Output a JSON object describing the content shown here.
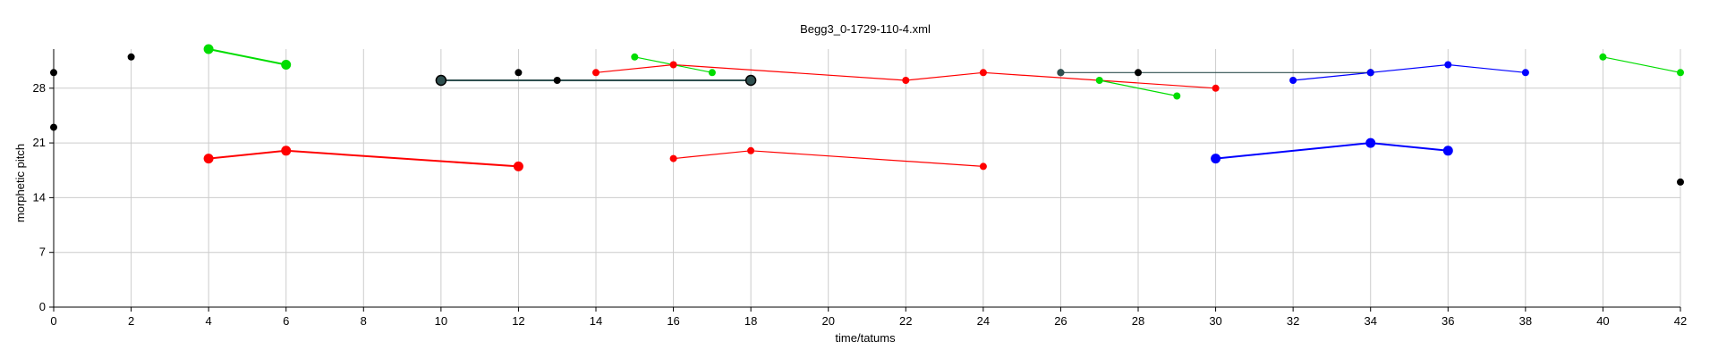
{
  "chart_data": {
    "type": "scatter",
    "title": "Begg3_0-1729-110-4.xml",
    "xlabel": "time/tatums",
    "ylabel": "morphetic pitch",
    "xlim": [
      0,
      42
    ],
    "ylim": [
      0,
      33
    ],
    "xticks": [
      0,
      2,
      4,
      6,
      8,
      10,
      12,
      14,
      16,
      18,
      20,
      22,
      24,
      26,
      28,
      30,
      32,
      34,
      36,
      38,
      40,
      42
    ],
    "yticks": [
      0,
      7,
      14,
      21,
      28
    ],
    "grid": true,
    "legend": "none",
    "series": [
      {
        "color": "#000000",
        "size": "small",
        "connected": false,
        "points": [
          [
            0,
            30
          ],
          [
            0,
            23
          ],
          [
            2,
            32
          ],
          [
            12,
            30
          ],
          [
            13,
            29
          ],
          [
            26,
            30
          ],
          [
            28,
            30
          ],
          [
            34,
            30
          ],
          [
            42,
            16
          ]
        ]
      },
      {
        "color": "#00dd00",
        "size": "large",
        "connected": true,
        "points": [
          [
            4,
            33
          ],
          [
            6,
            31
          ]
        ]
      },
      {
        "color": "#2f4f4f",
        "size": "large",
        "connected": true,
        "points": [
          [
            10,
            29
          ],
          [
            18,
            29
          ]
        ]
      },
      {
        "color": "#ff0000",
        "size": "large",
        "connected": true,
        "points": [
          [
            4,
            19
          ],
          [
            6,
            20
          ],
          [
            12,
            18
          ]
        ]
      },
      {
        "color": "#ff0000",
        "size": "small",
        "connected": true,
        "points": [
          [
            14,
            30
          ],
          [
            16,
            31
          ],
          [
            22,
            29
          ],
          [
            24,
            30
          ],
          [
            30,
            28
          ]
        ]
      },
      {
        "color": "#ff0000",
        "size": "small",
        "connected": true,
        "points": [
          [
            16,
            19
          ],
          [
            18,
            20
          ],
          [
            24,
            18
          ]
        ]
      },
      {
        "color": "#00dd00",
        "size": "small",
        "connected": true,
        "points": [
          [
            15,
            32
          ],
          [
            17,
            30
          ]
        ]
      },
      {
        "color": "#2f4f4f",
        "size": "small",
        "connected": true,
        "points": [
          [
            26,
            30
          ],
          [
            34,
            30
          ]
        ]
      },
      {
        "color": "#00dd00",
        "size": "small",
        "connected": true,
        "points": [
          [
            27,
            29
          ],
          [
            29,
            27
          ]
        ]
      },
      {
        "color": "#0000ff",
        "size": "small",
        "connected": true,
        "points": [
          [
            32,
            29
          ],
          [
            34,
            30
          ],
          [
            36,
            31
          ],
          [
            38,
            30
          ]
        ]
      },
      {
        "color": "#0000ff",
        "size": "large",
        "connected": true,
        "points": [
          [
            30,
            19
          ],
          [
            34,
            21
          ],
          [
            36,
            20
          ]
        ]
      },
      {
        "color": "#00dd00",
        "size": "small",
        "connected": true,
        "points": [
          [
            40,
            32
          ],
          [
            42,
            30
          ]
        ]
      }
    ]
  }
}
